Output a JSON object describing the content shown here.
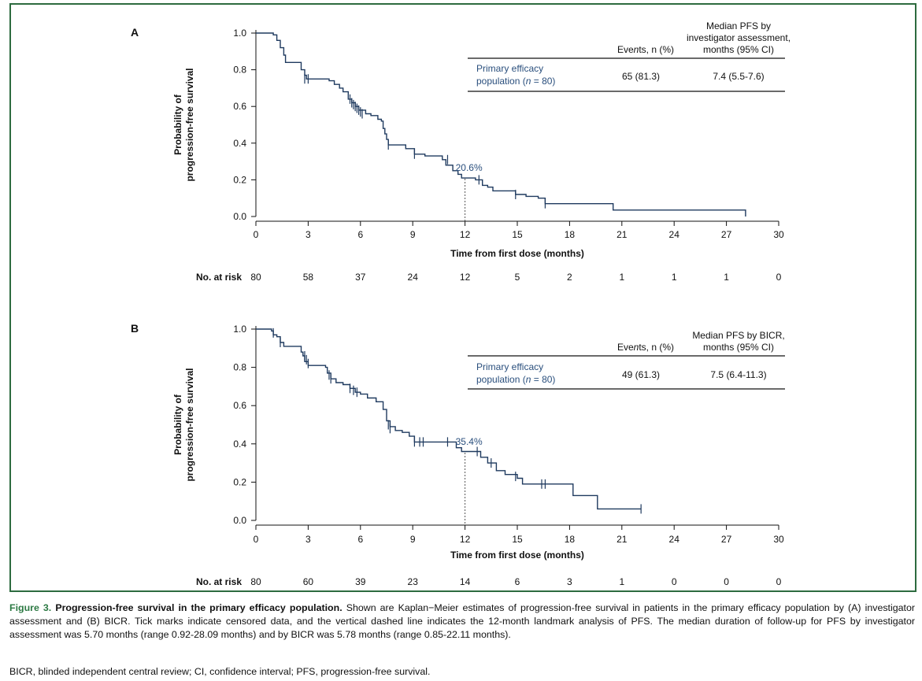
{
  "chart_data": [
    {
      "type": "line",
      "panel_label": "A",
      "xlabel": "Time from first dose (months)",
      "ylabel": [
        "Probability of",
        "progression-free survival"
      ],
      "xlim": [
        0,
        30
      ],
      "ylim": [
        0,
        1
      ],
      "x_ticks": [
        "0",
        "3",
        "6",
        "9",
        "12",
        "15",
        "18",
        "21",
        "24",
        "27",
        "30"
      ],
      "y_ticks": [
        "0.0",
        "0.2",
        "0.4",
        "0.6",
        "0.8",
        "1.0"
      ],
      "grid": false,
      "curve": [
        [
          0,
          1.0
        ],
        [
          0.9,
          1.0
        ],
        [
          1.0,
          0.99
        ],
        [
          1.2,
          0.96
        ],
        [
          1.4,
          0.92
        ],
        [
          1.6,
          0.88
        ],
        [
          1.7,
          0.84
        ],
        [
          2.5,
          0.84
        ],
        [
          2.6,
          0.8
        ],
        [
          2.8,
          0.77
        ],
        [
          2.9,
          0.75
        ],
        [
          4.2,
          0.74
        ],
        [
          4.5,
          0.72
        ],
        [
          4.8,
          0.7
        ],
        [
          5.0,
          0.68
        ],
        [
          5.3,
          0.64
        ],
        [
          5.5,
          0.62
        ],
        [
          5.7,
          0.6
        ],
        [
          5.9,
          0.58
        ],
        [
          6.3,
          0.56
        ],
        [
          6.6,
          0.55
        ],
        [
          7.0,
          0.53
        ],
        [
          7.2,
          0.52
        ],
        [
          7.3,
          0.48
        ],
        [
          7.4,
          0.45
        ],
        [
          7.5,
          0.42
        ],
        [
          7.6,
          0.39
        ],
        [
          8.6,
          0.37
        ],
        [
          9.1,
          0.34
        ],
        [
          9.7,
          0.33
        ],
        [
          10.7,
          0.31
        ],
        [
          10.9,
          0.28
        ],
        [
          11.3,
          0.25
        ],
        [
          11.6,
          0.23
        ],
        [
          11.8,
          0.21
        ],
        [
          12.6,
          0.2
        ],
        [
          13.0,
          0.17
        ],
        [
          13.3,
          0.16
        ],
        [
          13.6,
          0.14
        ],
        [
          14.9,
          0.12
        ],
        [
          15.5,
          0.11
        ],
        [
          16.2,
          0.1
        ],
        [
          16.6,
          0.07
        ],
        [
          20.4,
          0.07
        ],
        [
          20.5,
          0.035
        ],
        [
          28.1,
          0.035
        ],
        [
          28.1,
          0.0
        ]
      ],
      "censored": [
        [
          2.8,
          0.75
        ],
        [
          3.0,
          0.75
        ],
        [
          5.4,
          0.64
        ],
        [
          5.5,
          0.62
        ],
        [
          5.6,
          0.61
        ],
        [
          5.7,
          0.6
        ],
        [
          5.8,
          0.59
        ],
        [
          5.9,
          0.58
        ],
        [
          6.0,
          0.57
        ],
        [
          6.1,
          0.56
        ],
        [
          7.6,
          0.39
        ],
        [
          9.1,
          0.34
        ],
        [
          11.0,
          0.31
        ],
        [
          12.8,
          0.2
        ],
        [
          14.9,
          0.12
        ],
        [
          16.6,
          0.07
        ]
      ],
      "landmark": {
        "x": 12,
        "y": 0.206,
        "label": "20.6%"
      },
      "risk_label": "No. at risk",
      "at_risk": [
        "80",
        "58",
        "37",
        "24",
        "12",
        "5",
        "2",
        "1",
        "1",
        "1",
        "0"
      ],
      "table": {
        "headers": [
          "Events, n (%)",
          "Median PFS by\ninvestigator assessment,\nmonths (95% CI)"
        ],
        "row_label": "Primary efficacy\npopulation (n = 80)",
        "values": [
          "65 (81.3)",
          "7.4 (5.5-7.6)"
        ]
      }
    },
    {
      "type": "line",
      "panel_label": "B",
      "xlabel": "Time from first dose (months)",
      "ylabel": [
        "Probability of",
        "progression-free survival"
      ],
      "xlim": [
        0,
        30
      ],
      "ylim": [
        0,
        1
      ],
      "x_ticks": [
        "0",
        "3",
        "6",
        "9",
        "12",
        "15",
        "18",
        "21",
        "24",
        "27",
        "30"
      ],
      "y_ticks": [
        "0.0",
        "0.2",
        "0.4",
        "0.6",
        "0.8",
        "1.0"
      ],
      "grid": false,
      "curve": [
        [
          0,
          1.0
        ],
        [
          0.8,
          1.0
        ],
        [
          0.9,
          0.99
        ],
        [
          1.0,
          0.97
        ],
        [
          1.2,
          0.96
        ],
        [
          1.4,
          0.93
        ],
        [
          1.6,
          0.91
        ],
        [
          2.5,
          0.91
        ],
        [
          2.6,
          0.88
        ],
        [
          2.7,
          0.86
        ],
        [
          2.8,
          0.83
        ],
        [
          3.0,
          0.81
        ],
        [
          3.5,
          0.81
        ],
        [
          4.0,
          0.8
        ],
        [
          4.1,
          0.77
        ],
        [
          4.3,
          0.74
        ],
        [
          4.6,
          0.72
        ],
        [
          5.0,
          0.71
        ],
        [
          5.4,
          0.69
        ],
        [
          5.7,
          0.67
        ],
        [
          6.0,
          0.66
        ],
        [
          6.4,
          0.64
        ],
        [
          6.9,
          0.62
        ],
        [
          7.3,
          0.58
        ],
        [
          7.5,
          0.52
        ],
        [
          7.7,
          0.49
        ],
        [
          8.0,
          0.47
        ],
        [
          8.4,
          0.46
        ],
        [
          8.8,
          0.44
        ],
        [
          9.1,
          0.41
        ],
        [
          10.9,
          0.41
        ],
        [
          11.5,
          0.38
        ],
        [
          11.8,
          0.36
        ],
        [
          12.7,
          0.36
        ],
        [
          12.9,
          0.33
        ],
        [
          13.3,
          0.3
        ],
        [
          13.8,
          0.26
        ],
        [
          14.3,
          0.24
        ],
        [
          15.0,
          0.22
        ],
        [
          15.3,
          0.19
        ],
        [
          18.1,
          0.19
        ],
        [
          18.2,
          0.13
        ],
        [
          19.5,
          0.13
        ],
        [
          19.6,
          0.06
        ],
        [
          22.1,
          0.06
        ]
      ],
      "censored": [
        [
          1.0,
          0.98
        ],
        [
          1.4,
          0.93
        ],
        [
          2.8,
          0.86
        ],
        [
          2.9,
          0.84
        ],
        [
          3.0,
          0.82
        ],
        [
          4.2,
          0.76
        ],
        [
          4.3,
          0.74
        ],
        [
          5.4,
          0.69
        ],
        [
          5.6,
          0.68
        ],
        [
          5.8,
          0.67
        ],
        [
          7.6,
          0.5
        ],
        [
          7.7,
          0.48
        ],
        [
          9.1,
          0.41
        ],
        [
          9.4,
          0.41
        ],
        [
          9.6,
          0.41
        ],
        [
          11.0,
          0.41
        ],
        [
          12.7,
          0.36
        ],
        [
          13.5,
          0.3
        ],
        [
          14.9,
          0.23
        ],
        [
          16.4,
          0.19
        ],
        [
          16.6,
          0.19
        ],
        [
          22.1,
          0.06
        ]
      ],
      "landmark": {
        "x": 12,
        "y": 0.354,
        "label": "35.4%"
      },
      "risk_label": "No. at risk",
      "at_risk": [
        "80",
        "60",
        "39",
        "23",
        "14",
        "6",
        "3",
        "1",
        "0",
        "0",
        "0"
      ],
      "table": {
        "headers": [
          "Events, n (%)",
          "Median PFS by BICR,\nmonths (95% CI)"
        ],
        "row_label": "Primary efficacy\npopulation (n = 80)",
        "values": [
          "49 (61.3)",
          "7.5 (6.4-11.3)"
        ]
      }
    }
  ],
  "caption": {
    "label": "Figure 3.",
    "title": "Progression-free survival in the primary efficacy population.",
    "body": "Shown are Kaplan−Meier estimates of progression-free survival in patients in the primary efficacy population by (A) investigator assessment and (B) BICR. Tick marks indicate censored data, and the vertical dashed line indicates the 12-month landmark analysis of PFS. The median duration of follow-up for PFS by investigator assessment was 5.70 months (range 0.92-28.09 months) and by BICR was 5.78 months (range 0.85-22.11 months).",
    "abbreviations": "BICR, blinded independent central review; CI, confidence interval; PFS, progression-free survival."
  },
  "colors": {
    "curve": "#1f3a5f",
    "frame": "#2d6b3f",
    "caption_label": "#2d7a44",
    "landmark_text": "#2a4f7d"
  }
}
